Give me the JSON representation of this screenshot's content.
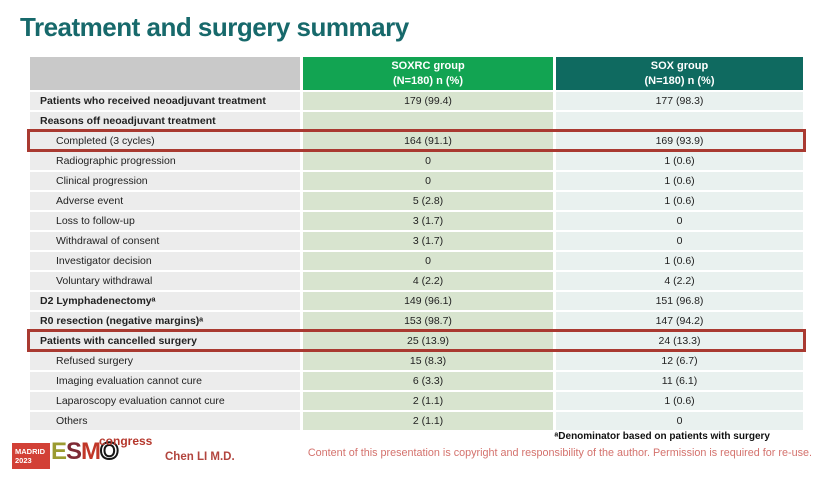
{
  "slide": {
    "title": "Treatment and surgery summary"
  },
  "table": {
    "header": {
      "soxrc": {
        "line1": "SOXRC group",
        "line2": "(N=180) n (%)"
      },
      "sox": {
        "line1": "SOX group",
        "line2": "(N=180) n (%)"
      }
    },
    "rows": [
      {
        "label": "Patients who received neoadjuvant treatment",
        "soxrc": "179 (99.4)",
        "sox": "177 (98.3)",
        "bold": true
      },
      {
        "label": "Reasons off neoadjuvant treatment",
        "soxrc": "",
        "sox": "",
        "bold": true
      },
      {
        "label": "Completed (3 cycles)",
        "soxrc": "164 (91.1)",
        "sox": "169 (93.9)",
        "indent": true,
        "highlight": true
      },
      {
        "label": "Radiographic progression",
        "soxrc": "0",
        "sox": "1 (0.6)",
        "indent": true
      },
      {
        "label": "Clinical progression",
        "soxrc": "0",
        "sox": "1 (0.6)",
        "indent": true
      },
      {
        "label": "Adverse event",
        "soxrc": "5 (2.8)",
        "sox": "1 (0.6)",
        "indent": true
      },
      {
        "label": "Loss to follow-up",
        "soxrc": "3 (1.7)",
        "sox": "0",
        "indent": true
      },
      {
        "label": "Withdrawal of consent",
        "soxrc": "3 (1.7)",
        "sox": "0",
        "indent": true
      },
      {
        "label": "Investigator decision",
        "soxrc": "0",
        "sox": "1 (0.6)",
        "indent": true
      },
      {
        "label": "Voluntary withdrawal",
        "soxrc": "4 (2.2)",
        "sox": "4 (2.2)",
        "indent": true
      },
      {
        "label": "D2 Lymphadenectomyᵃ",
        "soxrc": "149 (96.1)",
        "sox": "151 (96.8)",
        "bold": true
      },
      {
        "label": "R0 resection (negative margins)ᵃ",
        "soxrc": "153 (98.7)",
        "sox": "147 (94.2)",
        "bold": true
      },
      {
        "label": "Patients with cancelled surgery",
        "soxrc": "25 (13.9)",
        "sox": "24 (13.3)",
        "bold": true,
        "highlight": true
      },
      {
        "label": "Refused surgery",
        "soxrc": "15 (8.3)",
        "sox": "12 (6.7)",
        "indent": true
      },
      {
        "label": "Imaging evaluation cannot cure",
        "soxrc": "6 (3.3)",
        "sox": "11 (6.1)",
        "indent": true
      },
      {
        "label": "Laparoscopy evaluation cannot cure",
        "soxrc": "2 (1.1)",
        "sox": "1 (0.6)",
        "indent": true
      },
      {
        "label": "Others",
        "soxrc": "2 (1.1)",
        "sox": "0",
        "indent": true
      }
    ]
  },
  "footer": {
    "logo": {
      "venue_line1": "MADRID",
      "venue_line2": "2023",
      "letter_e": "E",
      "letter_s": "S",
      "letter_m": "M",
      "letter_o": "O",
      "congress": "congress"
    },
    "author": "Chen LI M.D.",
    "footnote": "ᵃDenominator based on patients with surgery",
    "copyright": "Content of this presentation is copyright and responsibility of the author. Permission is required for re-use."
  },
  "colors": {
    "title_teal": "#17696b",
    "header_green": "#12a452",
    "header_teal": "#0f6a60",
    "header_grey": "#c9c9c9",
    "cell_label_bg": "#ececec",
    "cell_soxrc_bg": "#d8e4cf",
    "cell_sox_bg": "#e9f1ef",
    "highlight_red": "#a93a31",
    "logo_red": "#d24036",
    "copyright_red": "#d4726d"
  }
}
